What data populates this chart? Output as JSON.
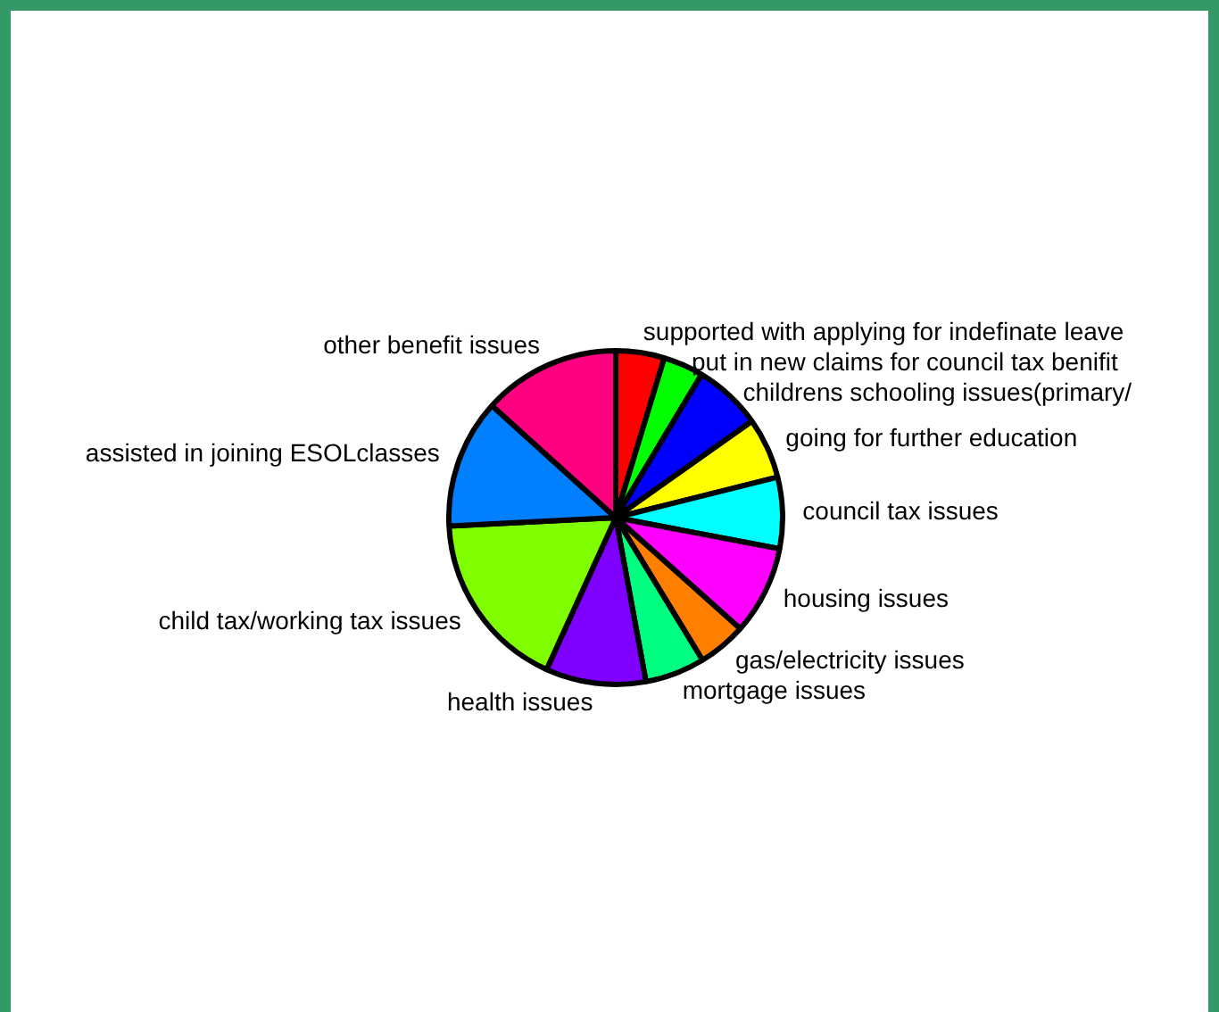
{
  "chart_data": {
    "type": "pie",
    "categories": [
      "supported with applying for indefinate leave",
      "put in new claims for council tax benifit",
      "childrens schooling issues(primary/",
      "going for further education",
      "council tax issues",
      "housing issues",
      "gas/electricity issues",
      "mortgage issues",
      "health issues",
      "child tax/working tax issues",
      "assisted in joining ESOLclasses",
      "other benefit issues"
    ],
    "values": [
      4.7,
      3.9,
      6.6,
      5.9,
      6.9,
      8.6,
      4.7,
      5.8,
      9.7,
      17.4,
      12.5,
      13.3
    ],
    "colors": [
      "#ff0000",
      "#00ff00",
      "#0000ff",
      "#ffff00",
      "#00ffff",
      "#ff00ff",
      "#ff8000",
      "#00ff80",
      "#8000ff",
      "#80ff00",
      "#0080ff",
      "#ff0080"
    ],
    "legend": false
  }
}
